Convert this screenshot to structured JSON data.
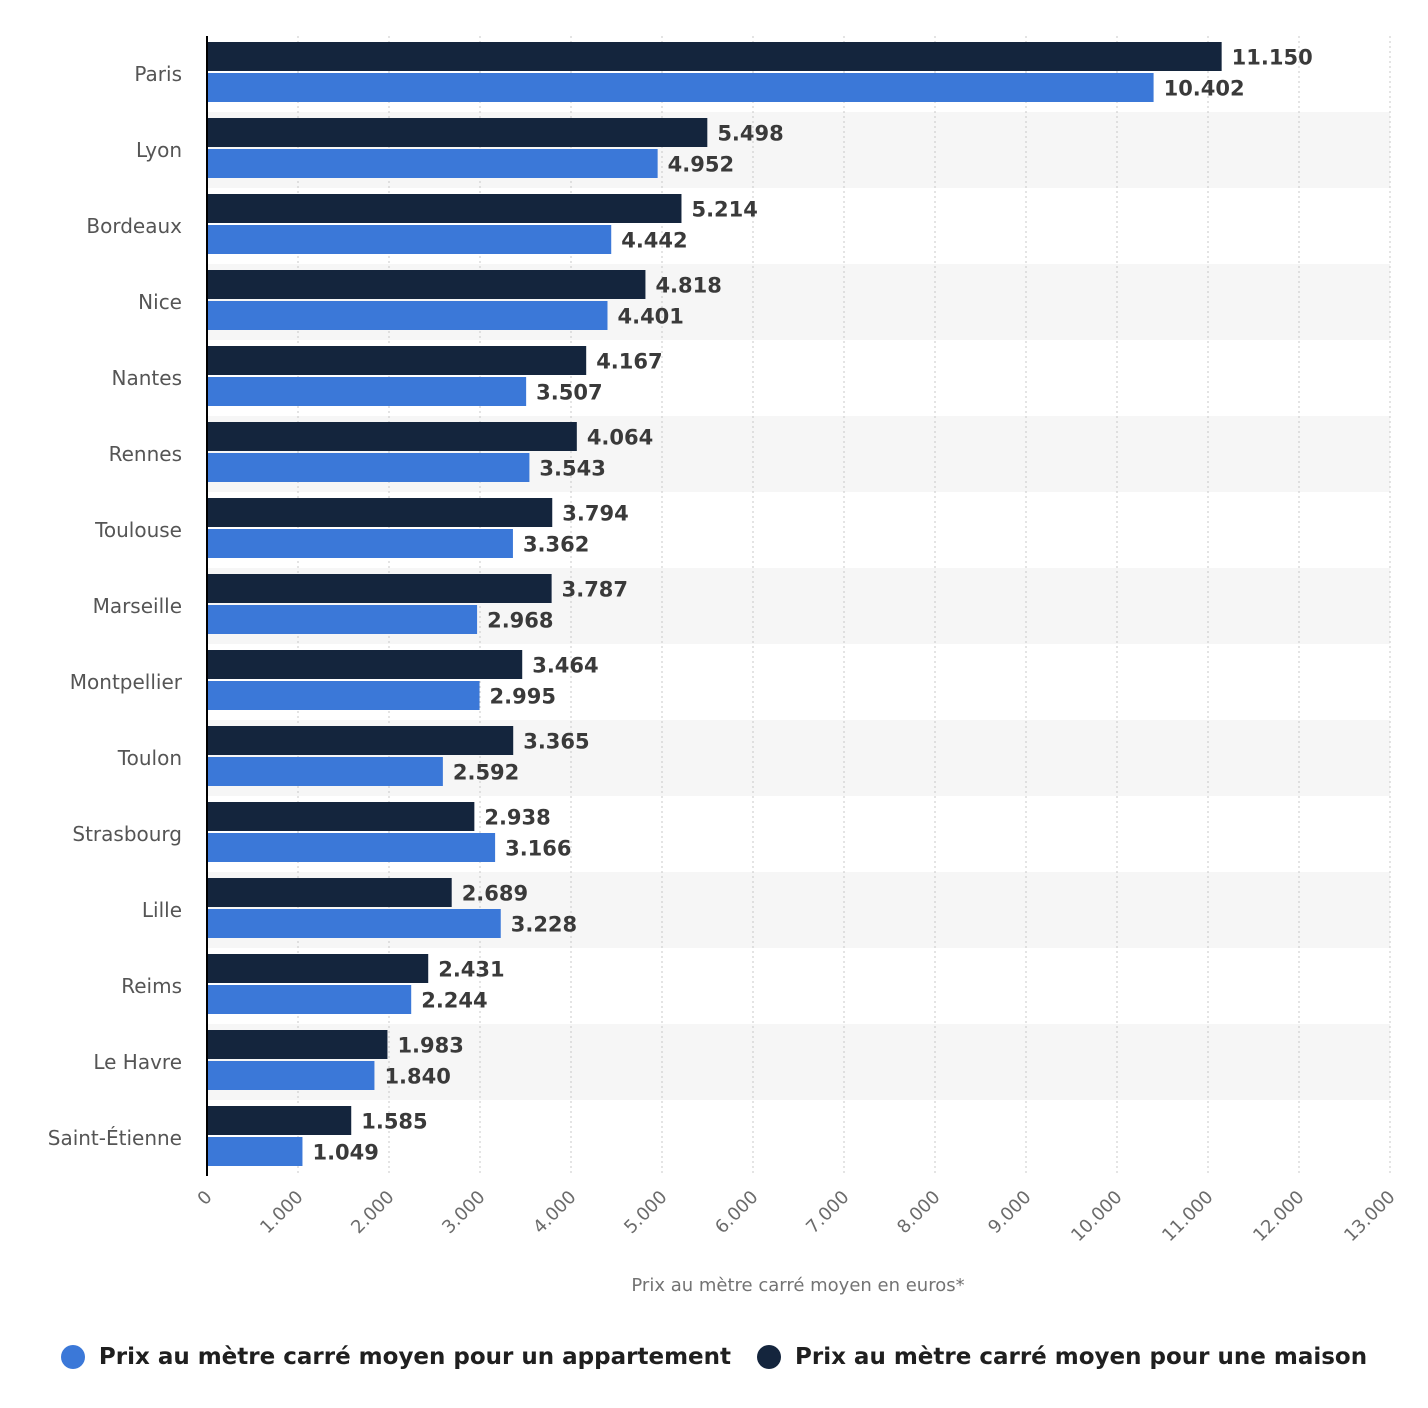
{
  "chart_data": {
    "type": "bar",
    "orientation": "horizontal",
    "categories": [
      "Paris",
      "Lyon",
      "Bordeaux",
      "Nice",
      "Nantes",
      "Rennes",
      "Toulouse",
      "Marseille",
      "Montpellier",
      "Toulon",
      "Strasbourg",
      "Lille",
      "Reims",
      "Le Havre",
      "Saint-Étienne"
    ],
    "series": [
      {
        "name": "Prix au mètre carré moyen pour une maison",
        "color": "#14253d",
        "values": [
          11150,
          5498,
          5214,
          4818,
          4167,
          4064,
          3794,
          3787,
          3464,
          3365,
          2938,
          2689,
          2431,
          1983,
          1585
        ],
        "labels": [
          "11.150",
          "5.498",
          "5.214",
          "4.818",
          "4.167",
          "4.064",
          "3.794",
          "3.787",
          "3.464",
          "3.365",
          "2.938",
          "2.689",
          "2.431",
          "1.983",
          "1.585"
        ]
      },
      {
        "name": "Prix au mètre carré moyen pour un appartement",
        "color": "#3b78d8",
        "values": [
          10402,
          4952,
          4442,
          4401,
          3507,
          3543,
          3362,
          2968,
          2995,
          2592,
          3166,
          3228,
          2244,
          1840,
          1049
        ],
        "labels": [
          "10.402",
          "4.952",
          "4.442",
          "4.401",
          "3.507",
          "3.543",
          "3.362",
          "2.968",
          "2.995",
          "2.592",
          "3.166",
          "3.228",
          "2.244",
          "1.840",
          "1.049"
        ]
      }
    ],
    "xlim": [
      0,
      13000
    ],
    "xticks": [
      0,
      1000,
      2000,
      3000,
      4000,
      5000,
      6000,
      7000,
      8000,
      9000,
      10000,
      11000,
      12000,
      13000
    ],
    "xtick_labels": [
      "0",
      "1.000",
      "2.000",
      "3.000",
      "4.000",
      "5.000",
      "6.000",
      "7.000",
      "8.000",
      "9.000",
      "10.000",
      "11.000",
      "12.000",
      "13.000"
    ],
    "xlabel": "Prix au mètre carré moyen en euros*",
    "ylabel": "",
    "grid": true,
    "legend_position": "bottom"
  },
  "legend": [
    {
      "label": "Prix au mètre carré moyen pour un appartement",
      "color": "#3b78d8"
    },
    {
      "label": "Prix au mètre carré moyen pour une maison",
      "color": "#14253d"
    }
  ]
}
